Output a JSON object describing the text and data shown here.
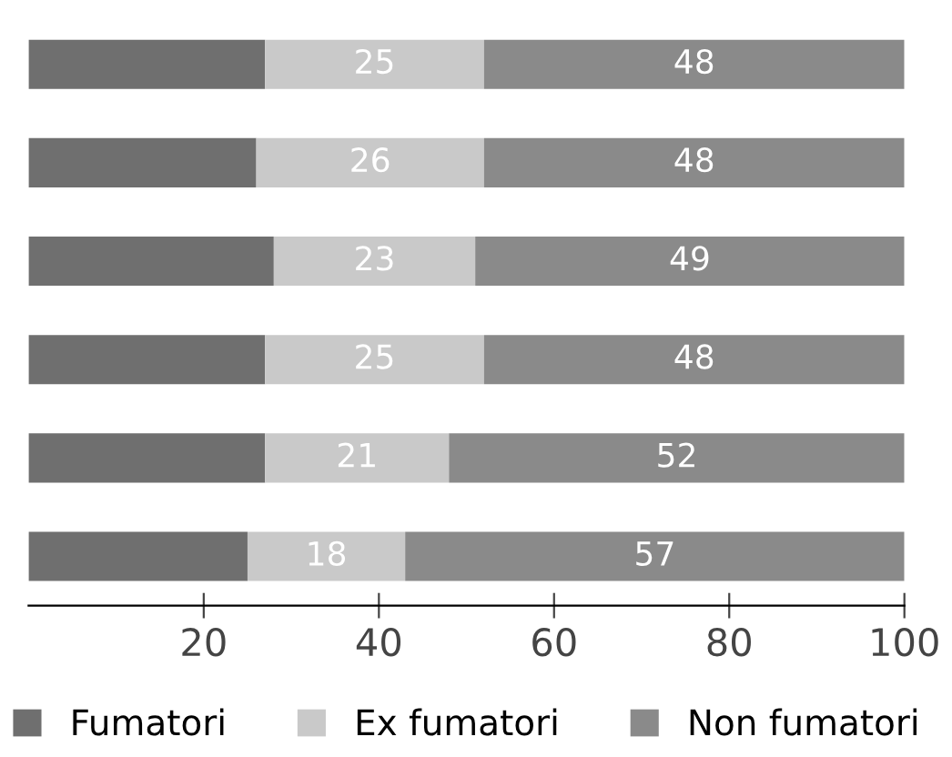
{
  "chart_data": {
    "type": "bar",
    "orientation": "horizontal",
    "stacked": true,
    "categories": [
      null,
      null,
      null,
      null,
      null,
      null
    ],
    "series": [
      {
        "name": "Fumatori",
        "color": "#6f6f6f",
        "values": [
          27,
          26,
          28,
          27,
          27,
          25
        ]
      },
      {
        "name": "Ex fumatori",
        "color": "#c9c9c9",
        "values": [
          25,
          26,
          23,
          25,
          21,
          18
        ],
        "value_labels": [
          "25",
          "26",
          "23",
          "25",
          "21",
          "18"
        ]
      },
      {
        "name": "Non fumatori",
        "color": "#8a8a8a",
        "values": [
          48,
          48,
          49,
          48,
          52,
          57
        ],
        "value_labels": [
          "48",
          "48",
          "49",
          "48",
          "52",
          "57"
        ]
      }
    ],
    "xlim": [
      0,
      100
    ],
    "xticks": [
      20,
      40,
      60,
      80,
      100
    ],
    "grid": false,
    "legend": "bottom",
    "tick_labels": "x"
  }
}
